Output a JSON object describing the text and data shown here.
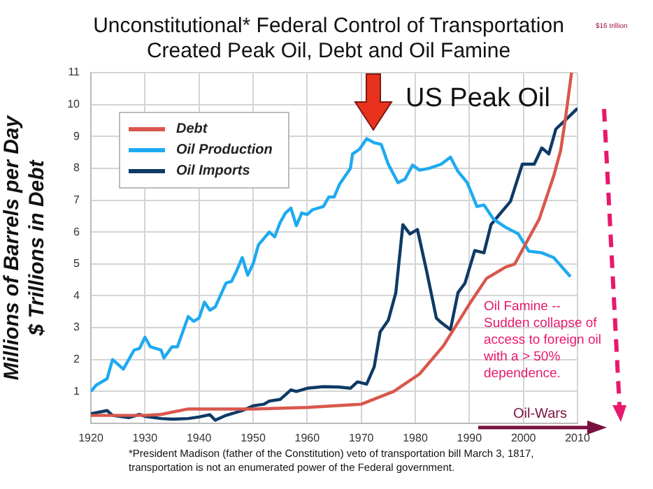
{
  "chart_data": {
    "type": "line",
    "title": "Unconstitutional* Federal Control of Transportation Created Peak Oil, Debt and Oil Famine",
    "ylabel": "Millions of Barrels per Day\n$ Trillions in Debt",
    "xlim": [
      1920,
      2010
    ],
    "xticks": [
      1920,
      1930,
      1940,
      1950,
      1960,
      1970,
      1980,
      1990,
      2000,
      2010
    ],
    "ylim": [
      0,
      11
    ],
    "yticks": [
      1,
      2,
      3,
      4,
      5,
      6,
      7,
      8,
      9,
      10,
      11
    ],
    "grid": true,
    "legend": "top left",
    "marker": "none",
    "series": [
      {
        "name": "Debt",
        "color": "#d9574c",
        "x": [
          1920,
          1930,
          1933,
          1938,
          1945,
          1950,
          1960,
          1970,
          1976,
          1980.8,
          1985.2,
          1990,
          1993.2,
          1996.7,
          1998.4,
          2000,
          2002.9,
          2005.6,
          2006.9,
          2007.8,
          2008.9
        ],
        "values": [
          0.25,
          0.25,
          0.28,
          0.45,
          0.45,
          0.45,
          0.5,
          0.6,
          1.0,
          1.55,
          2.43,
          3.74,
          4.55,
          4.9,
          5.0,
          5.5,
          6.4,
          7.76,
          8.57,
          9.6,
          11
        ]
      },
      {
        "name": "Oil Production",
        "color": "#1eaaf1",
        "x": [
          1920,
          1921,
          1923,
          1924,
          1926,
          1928,
          1929,
          1930,
          1931,
          1933,
          1933.5,
          1935,
          1936,
          1938,
          1939,
          1940,
          1941,
          1942,
          1943,
          1945,
          1946,
          1947,
          1948,
          1949,
          1950,
          1951,
          1952,
          1953,
          1954,
          1955,
          1956,
          1957,
          1958,
          1959,
          1960,
          1961,
          1963,
          1964,
          1965,
          1966,
          1968,
          1968.4,
          1969.7,
          1971,
          1972.4,
          1973.7,
          1975,
          1976.8,
          1978.1,
          1979.5,
          1980.8,
          1982.6,
          1984.8,
          1986.5,
          1987.9,
          1989.6,
          1991.4,
          1992.7,
          1994.5,
          1996.7,
          1999,
          2001,
          2003.4,
          2005.6,
          2008.7
        ],
        "values": [
          1.0,
          1.2,
          1.4,
          2.0,
          1.7,
          2.3,
          2.35,
          2.7,
          2.4,
          2.3,
          2.05,
          2.4,
          2.4,
          3.35,
          3.2,
          3.3,
          3.8,
          3.55,
          3.65,
          4.4,
          4.45,
          4.8,
          5.2,
          4.65,
          5.0,
          5.6,
          5.8,
          6.0,
          5.85,
          6.3,
          6.6,
          6.75,
          6.2,
          6.6,
          6.55,
          6.7,
          6.8,
          7.1,
          7.1,
          7.5,
          8.0,
          8.45,
          8.6,
          8.93,
          8.8,
          8.75,
          8.13,
          7.55,
          7.66,
          8.1,
          7.94,
          8.0,
          8.13,
          8.35,
          7.9,
          7.55,
          6.8,
          6.85,
          6.4,
          6.15,
          5.95,
          5.4,
          5.35,
          5.2,
          4.6
        ]
      },
      {
        "name": "Oil Imports",
        "color": "#0e3a66",
        "x": [
          1920,
          1923,
          1924,
          1927,
          1929,
          1930,
          1933,
          1935,
          1938,
          1940,
          1942,
          1943,
          1945,
          1948,
          1950,
          1952,
          1953,
          1955,
          1957,
          1958,
          1960,
          1963,
          1965.8,
          1968,
          1969.3,
          1971,
          1972.4,
          1973.5,
          1975,
          1976.4,
          1977.7,
          1979,
          1980.4,
          1982.1,
          1983.9,
          1984.8,
          1986.5,
          1987.9,
          1989.2,
          1991,
          1992.7,
          1994,
          1995.8,
          1997.6,
          1999.8,
          2002,
          2003.4,
          2004.7,
          2006,
          2007.8,
          2010
        ],
        "values": [
          0.3,
          0.4,
          0.25,
          0.18,
          0.28,
          0.22,
          0.15,
          0.13,
          0.15,
          0.2,
          0.27,
          0.1,
          0.25,
          0.4,
          0.55,
          0.6,
          0.7,
          0.75,
          1.05,
          1.0,
          1.1,
          1.15,
          1.14,
          1.1,
          1.3,
          1.23,
          1.77,
          2.87,
          3.23,
          4.1,
          6.23,
          5.94,
          6.08,
          4.77,
          3.3,
          3.16,
          2.94,
          4.1,
          4.4,
          5.42,
          5.35,
          6.23,
          6.6,
          6.96,
          8.13,
          8.13,
          8.64,
          8.45,
          9.23,
          9.52,
          9.88
        ]
      }
    ],
    "annotations": [
      "US Peak Oil",
      "$16 trillion",
      "Oil Famine -- Sudden collapse of access to foreign oil with a > 50% dependence.",
      "Oil-Wars",
      "*President Madison (father of the Constitution) veto of transportation bill March 3, 1817, transportation is not an enumerated power of the Federal government."
    ]
  }
}
